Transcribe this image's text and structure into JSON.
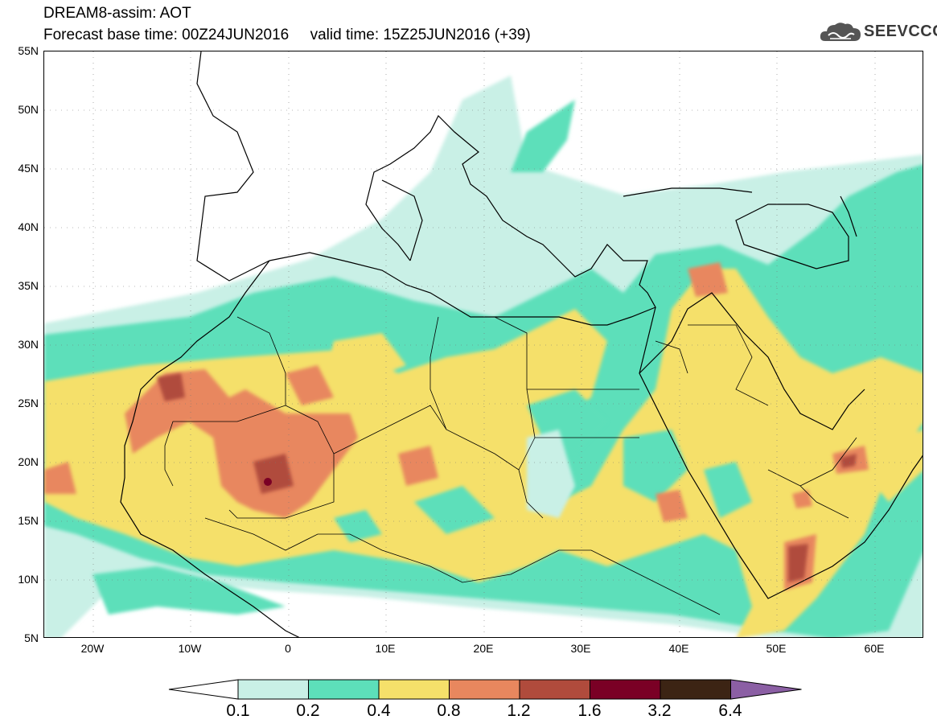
{
  "header": {
    "line1": "DREAM8-assim: AOT",
    "line2": "Forecast base time: 00Z24JUN2016     valid time: 15Z25JUN2016 (+39)"
  },
  "logo": {
    "text": "SEEVCCC",
    "icon": "cloud-icon",
    "color": "#555555"
  },
  "map": {
    "lon_range": [
      -25,
      65
    ],
    "lat_range": [
      5,
      55
    ],
    "lat_labels": [
      "55N",
      "50N",
      "45N",
      "40N",
      "35N",
      "30N",
      "25N",
      "20N",
      "15N",
      "10N",
      "5N"
    ],
    "lon_labels": [
      "20W",
      "10W",
      "0",
      "10E",
      "20E",
      "30E",
      "40E",
      "50E",
      "60E"
    ]
  },
  "colorbar": {
    "labels": [
      "0.1",
      "0.2",
      "0.4",
      "0.8",
      "1.2",
      "1.6",
      "3.2",
      "6.4"
    ],
    "colors": [
      "#ffffff",
      "#c9f0e6",
      "#5ddfba",
      "#f5e06a",
      "#e8875e",
      "#b04b3c",
      "#7a0025",
      "#3c2414",
      "#8b5fa4"
    ]
  }
}
